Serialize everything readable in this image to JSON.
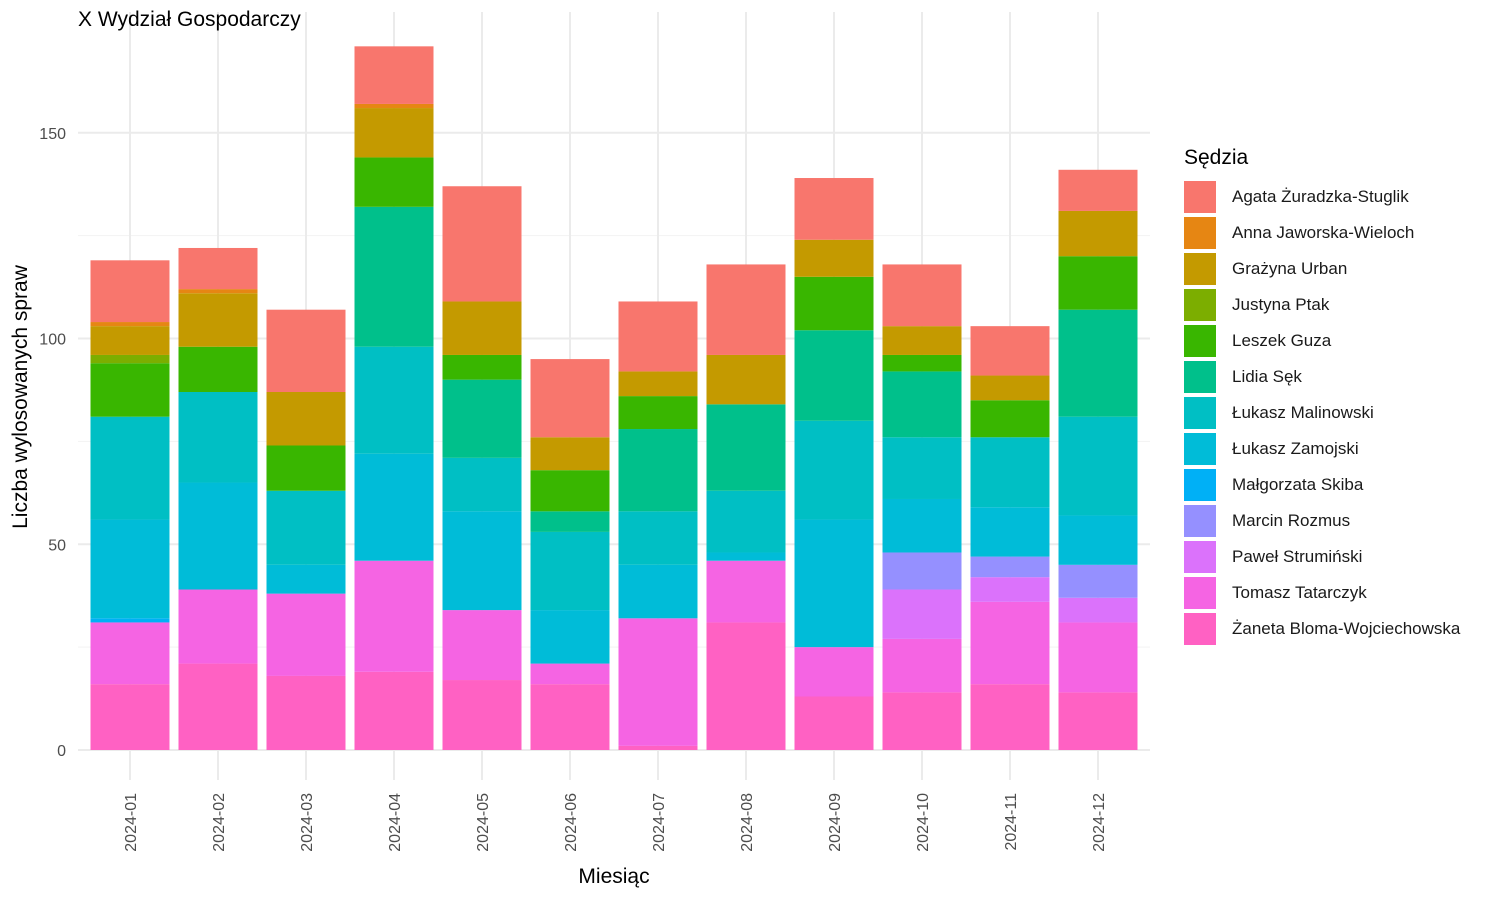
{
  "chart_data": {
    "type": "bar",
    "stacked": true,
    "title": "X Wydział Gospodarczy",
    "xlabel": "Miesiąc",
    "ylabel": "Liczba wylosowanych spraw",
    "ylim": [
      0,
      175
    ],
    "yticks": [
      0,
      50,
      100,
      150
    ],
    "grid": true,
    "legend_title": "Sędzia",
    "legend_position": "right",
    "categories": [
      "2024-01",
      "2024-02",
      "2024-03",
      "2024-04",
      "2024-05",
      "2024-06",
      "2024-07",
      "2024-08",
      "2024-09",
      "2024-10",
      "2024-11",
      "2024-12"
    ],
    "series": [
      {
        "name": "Żaneta Bloma-Wojciechowska",
        "color": "#FF61C3",
        "values": [
          16,
          21,
          18,
          19,
          17,
          16,
          1,
          31,
          13,
          14,
          16,
          14
        ]
      },
      {
        "name": "Tomasz Tatarczyk",
        "color": "#F564E3",
        "values": [
          15,
          18,
          20,
          27,
          17,
          5,
          31,
          15,
          12,
          13,
          20,
          17
        ]
      },
      {
        "name": "Paweł Strumiński",
        "color": "#DB72FB",
        "values": [
          0,
          0,
          0,
          0,
          0,
          0,
          0,
          0,
          0,
          12,
          6,
          6
        ]
      },
      {
        "name": "Marcin Rozmus",
        "color": "#9590FF",
        "values": [
          0,
          0,
          0,
          0,
          0,
          0,
          0,
          0,
          0,
          9,
          5,
          8
        ]
      },
      {
        "name": "Małgorzata Skiba",
        "color": "#00B0F6",
        "values": [
          1,
          0,
          0,
          0,
          0,
          0,
          0,
          0,
          0,
          0,
          0,
          0
        ]
      },
      {
        "name": "Łukasz Zamojski",
        "color": "#00BCD8",
        "values": [
          24,
          26,
          7,
          26,
          24,
          13,
          13,
          2,
          31,
          13,
          12,
          12
        ]
      },
      {
        "name": "Łukasz Malinowski",
        "color": "#00BFC4",
        "values": [
          25,
          22,
          18,
          26,
          13,
          19,
          13,
          15,
          24,
          15,
          17,
          24
        ]
      },
      {
        "name": "Lidia Sęk",
        "color": "#00C08B",
        "values": [
          0,
          0,
          0,
          34,
          19,
          5,
          20,
          21,
          22,
          16,
          0,
          26
        ]
      },
      {
        "name": "Leszek Guza",
        "color": "#39B600",
        "values": [
          13,
          11,
          11,
          12,
          6,
          10,
          8,
          0,
          13,
          4,
          9,
          13
        ]
      },
      {
        "name": "Justyna Ptak",
        "color": "#7CAE00",
        "values": [
          2,
          0,
          0,
          0,
          0,
          0,
          0,
          0,
          0,
          0,
          0,
          0
        ]
      },
      {
        "name": "Grażyna Urban",
        "color": "#C49A00",
        "values": [
          7,
          13,
          13,
          12,
          13,
          8,
          6,
          12,
          9,
          7,
          6,
          11
        ]
      },
      {
        "name": "Anna Jaworska-Wieloch",
        "color": "#E68613",
        "values": [
          1,
          1,
          0,
          1,
          0,
          0,
          0,
          0,
          0,
          0,
          0,
          0
        ]
      },
      {
        "name": "Agata Żuradzka-Stuglik",
        "color": "#F8766D",
        "values": [
          15,
          10,
          20,
          14,
          28,
          19,
          17,
          22,
          15,
          15,
          12,
          10
        ]
      }
    ]
  },
  "legend_order": [
    "Agata Żuradzka-Stuglik",
    "Anna Jaworska-Wieloch",
    "Grażyna Urban",
    "Justyna Ptak",
    "Leszek Guza",
    "Lidia Sęk",
    "Łukasz Malinowski",
    "Łukasz Zamojski",
    "Małgorzata Skiba",
    "Marcin Rozmus",
    "Paweł Strumiński",
    "Tomasz Tatarczyk",
    "Żaneta Bloma-Wojciechowska"
  ]
}
